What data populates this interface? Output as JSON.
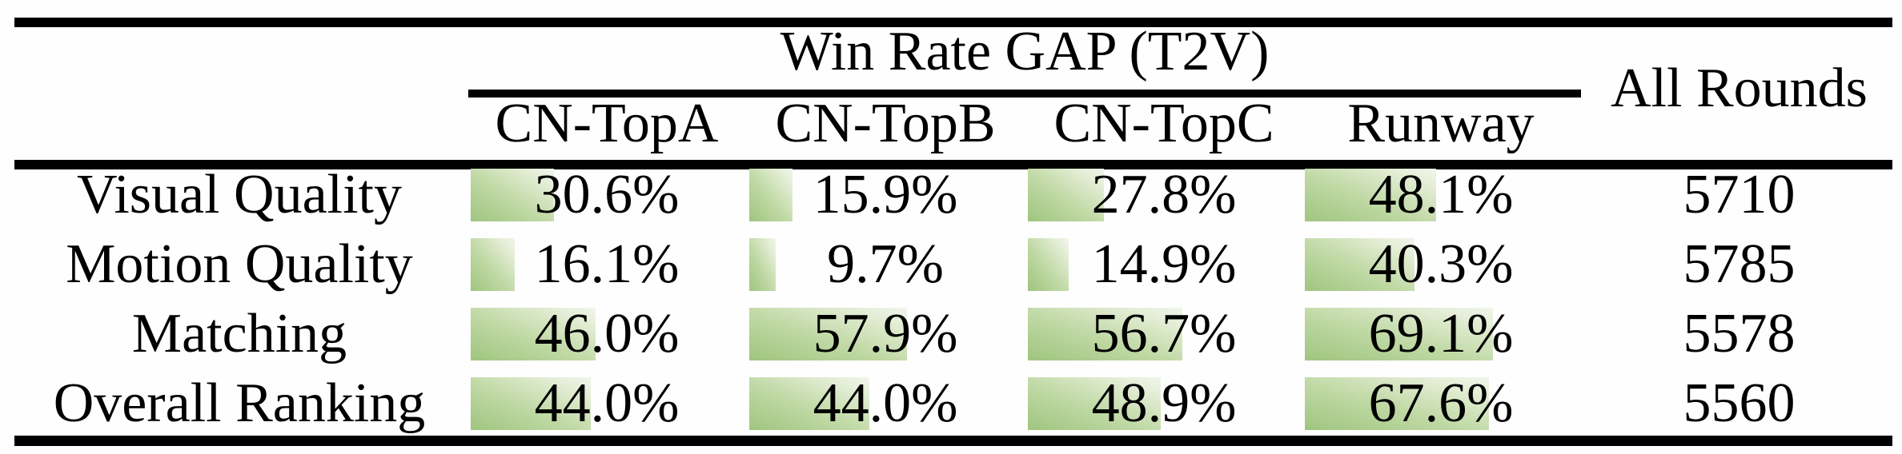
{
  "table": {
    "group_header": "Win Rate GAP (T2V)",
    "all_rounds_header": "All Rounds",
    "columns": [
      "CN-TopA",
      "CN-TopB",
      "CN-TopC",
      "Runway"
    ],
    "rows": [
      {
        "label": "Visual Quality",
        "cells": [
          {
            "text": "30.6%",
            "pct": 30.6
          },
          {
            "text": "15.9%",
            "pct": 15.9
          },
          {
            "text": "27.8%",
            "pct": 27.8
          },
          {
            "text": "48.1%",
            "pct": 48.1
          }
        ],
        "all_rounds": "5710"
      },
      {
        "label": "Motion Quality",
        "cells": [
          {
            "text": "16.1%",
            "pct": 16.1
          },
          {
            "text": "9.7%",
            "pct": 9.7
          },
          {
            "text": "14.9%",
            "pct": 14.9
          },
          {
            "text": "40.3%",
            "pct": 40.3
          }
        ],
        "all_rounds": "5785"
      },
      {
        "label": "Matching",
        "cells": [
          {
            "text": "46.0%",
            "pct": 46.0
          },
          {
            "text": "57.9%",
            "pct": 57.9
          },
          {
            "text": "56.7%",
            "pct": 56.7
          },
          {
            "text": "69.1%",
            "pct": 69.1
          }
        ],
        "all_rounds": "5578"
      },
      {
        "label": "Overall Ranking",
        "cells": [
          {
            "text": "44.0%",
            "pct": 44.0
          },
          {
            "text": "44.0%",
            "pct": 44.0
          },
          {
            "text": "48.9%",
            "pct": 48.9
          },
          {
            "text": "67.6%",
            "pct": 67.6
          }
        ],
        "all_rounds": "5560"
      }
    ],
    "colors": {
      "bar_green": "#9fc57f",
      "bar_fade": "#f1f5ec",
      "text": "#000000",
      "rule": "#000000"
    }
  },
  "chart_data": {
    "type": "table",
    "title": "Win Rate GAP (T2V)",
    "categories": [
      "Visual Quality",
      "Motion Quality",
      "Matching",
      "Overall Ranking"
    ],
    "series": [
      {
        "name": "CN-TopA",
        "values": [
          30.6,
          16.1,
          46.0,
          44.0
        ]
      },
      {
        "name": "CN-TopB",
        "values": [
          15.9,
          9.7,
          57.9,
          44.0
        ]
      },
      {
        "name": "CN-TopC",
        "values": [
          27.8,
          14.9,
          56.7,
          48.9
        ]
      },
      {
        "name": "Runway",
        "values": [
          48.1,
          40.3,
          69.1,
          67.6
        ]
      }
    ],
    "extra_column": {
      "name": "All Rounds",
      "values": [
        5710,
        5785,
        5578,
        5560
      ]
    },
    "unit": "%",
    "layout": "in-cell green gradient data bars; bar length proportional to percentage (100% = full column width)"
  }
}
